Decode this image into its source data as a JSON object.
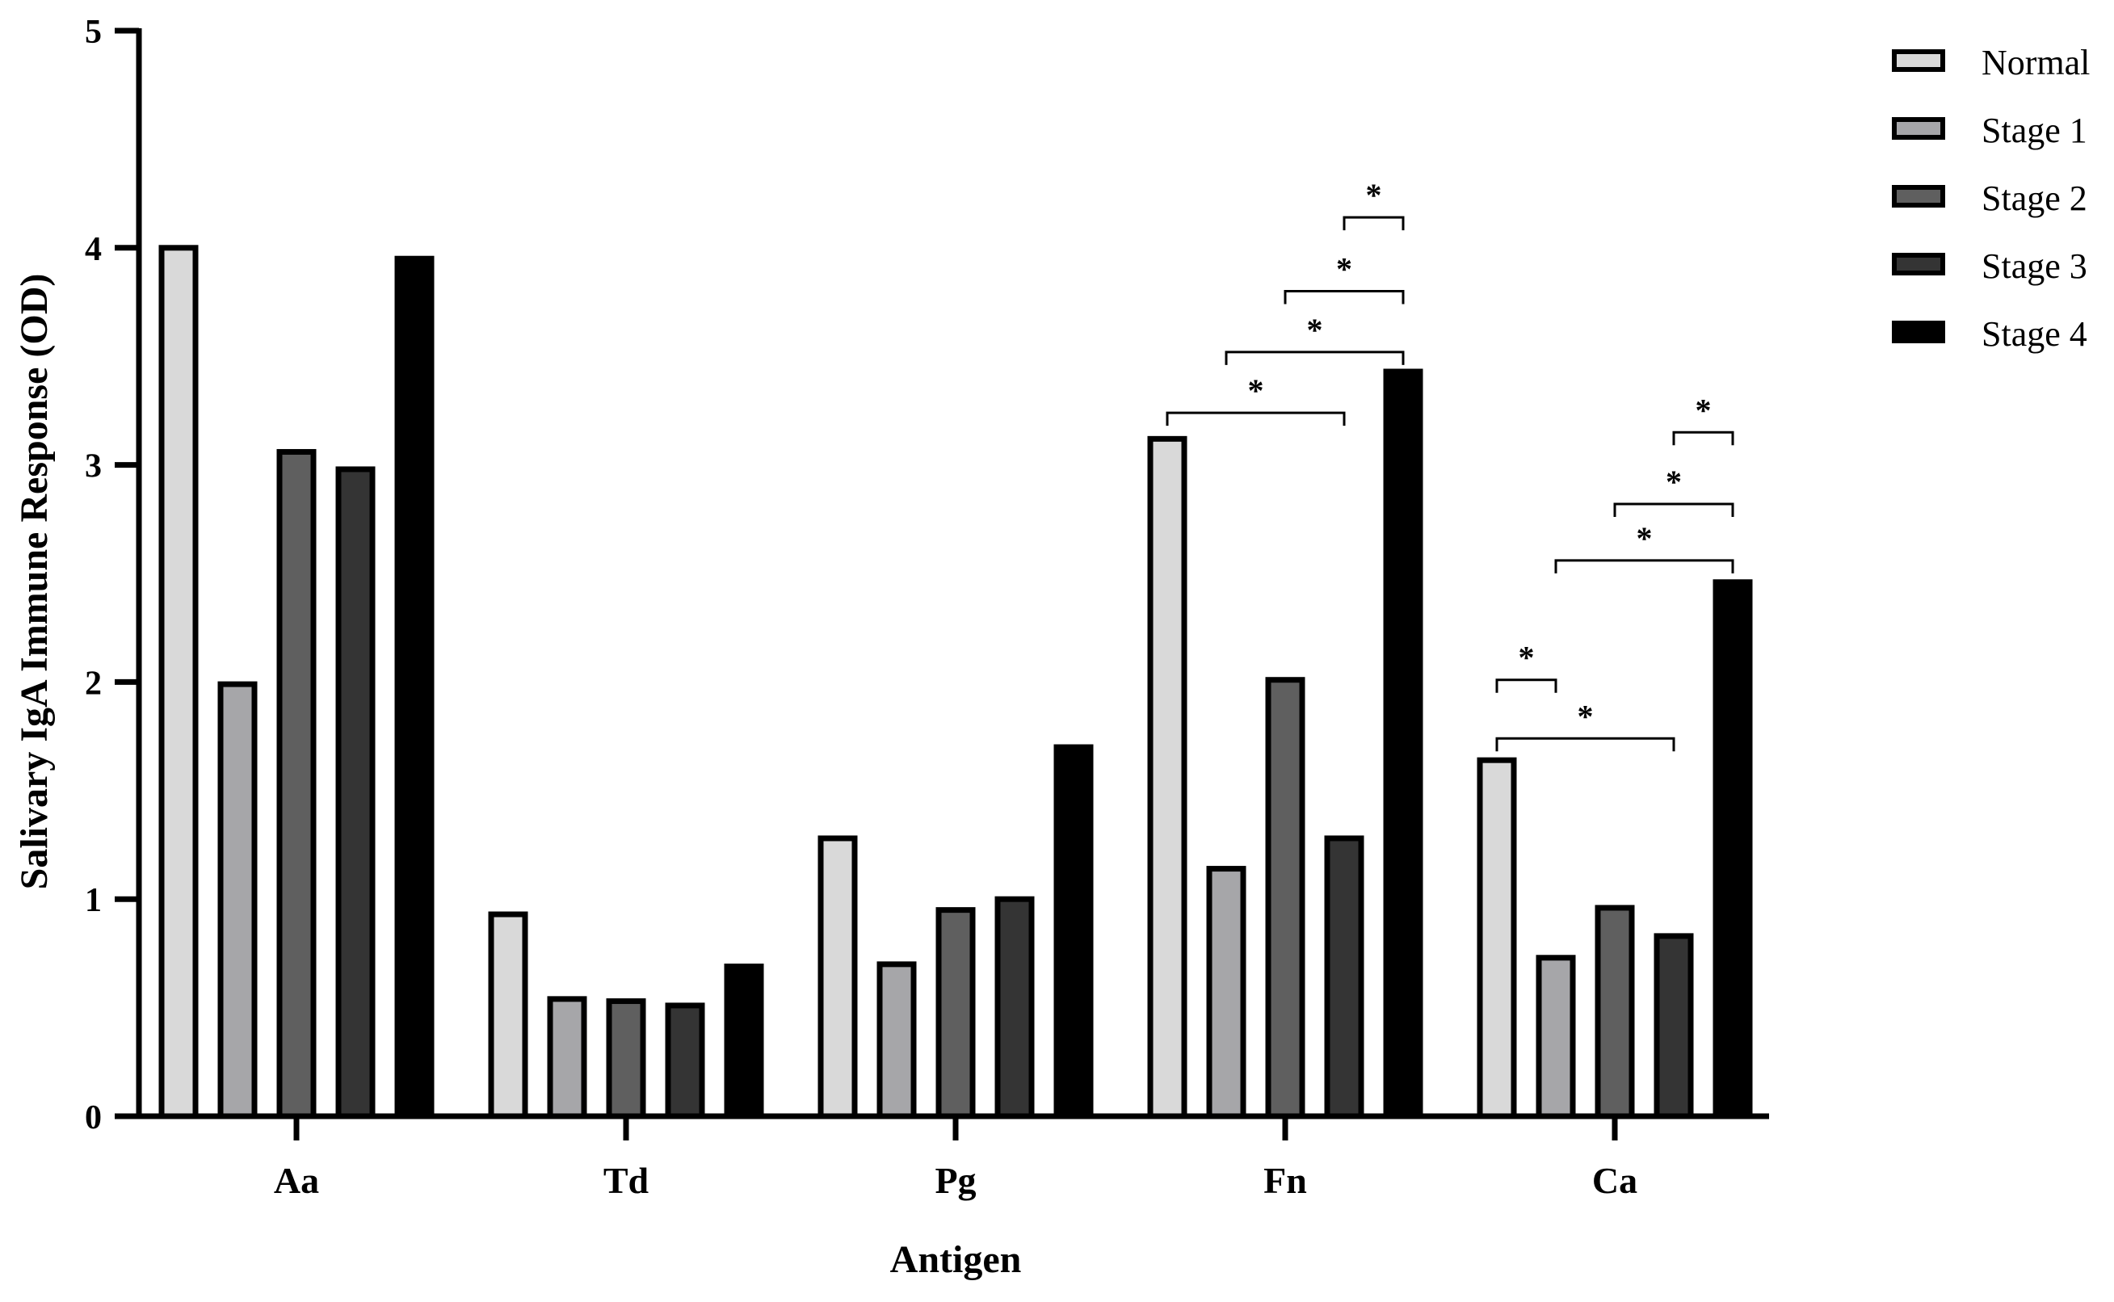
{
  "chart_data": {
    "type": "bar",
    "title": "",
    "xlabel": "Antigen",
    "ylabel": "Salivary IgA Immune Response (OD)",
    "ylim": [
      0,
      5
    ],
    "yticks": [
      "0",
      "1",
      "2",
      "3",
      "4",
      "5"
    ],
    "categories": [
      "Aa",
      "Td",
      "Pg",
      "Fn",
      "Ca"
    ],
    "series": [
      {
        "name": "Normal",
        "color": "#d9d9d9",
        "values": [
          4.0,
          0.93,
          1.28,
          3.12,
          1.64
        ]
      },
      {
        "name": "Stage 1",
        "color": "#a6a6a9",
        "values": [
          1.99,
          0.54,
          0.7,
          1.14,
          0.73
        ]
      },
      {
        "name": "Stage 2",
        "color": "#5f5f5f",
        "values": [
          3.06,
          0.53,
          0.95,
          2.01,
          0.96
        ]
      },
      {
        "name": "Stage 3",
        "color": "#343434",
        "values": [
          2.98,
          0.51,
          1.0,
          1.28,
          0.83
        ]
      },
      {
        "name": "Stage 4",
        "color": "#000000",
        "values": [
          3.95,
          0.69,
          1.7,
          3.43,
          2.46
        ]
      }
    ],
    "legend_position": "top-right",
    "grid": false,
    "significance": [
      {
        "category": "Fn",
        "from": "Normal",
        "to": "Stage 3",
        "y": 3.24,
        "label": "*"
      },
      {
        "category": "Fn",
        "from": "Stage 1",
        "to": "Stage 4",
        "y": 3.52,
        "label": "*"
      },
      {
        "category": "Fn",
        "from": "Stage 2",
        "to": "Stage 4",
        "y": 3.8,
        "label": "*"
      },
      {
        "category": "Fn",
        "from": "Stage 3",
        "to": "Stage 4",
        "y": 4.14,
        "label": "*"
      },
      {
        "category": "Ca",
        "from": "Normal",
        "to": "Stage 3",
        "y": 1.74,
        "label": "*"
      },
      {
        "category": "Ca",
        "from": "Normal",
        "to": "Stage 1",
        "y": 2.01,
        "label": "*"
      },
      {
        "category": "Ca",
        "from": "Stage 1",
        "to": "Stage 4",
        "y": 2.56,
        "label": "*"
      },
      {
        "category": "Ca",
        "from": "Stage 2",
        "to": "Stage 4",
        "y": 2.82,
        "label": "*"
      },
      {
        "category": "Ca",
        "from": "Stage 3",
        "to": "Stage 4",
        "y": 3.15,
        "label": "*"
      }
    ]
  }
}
